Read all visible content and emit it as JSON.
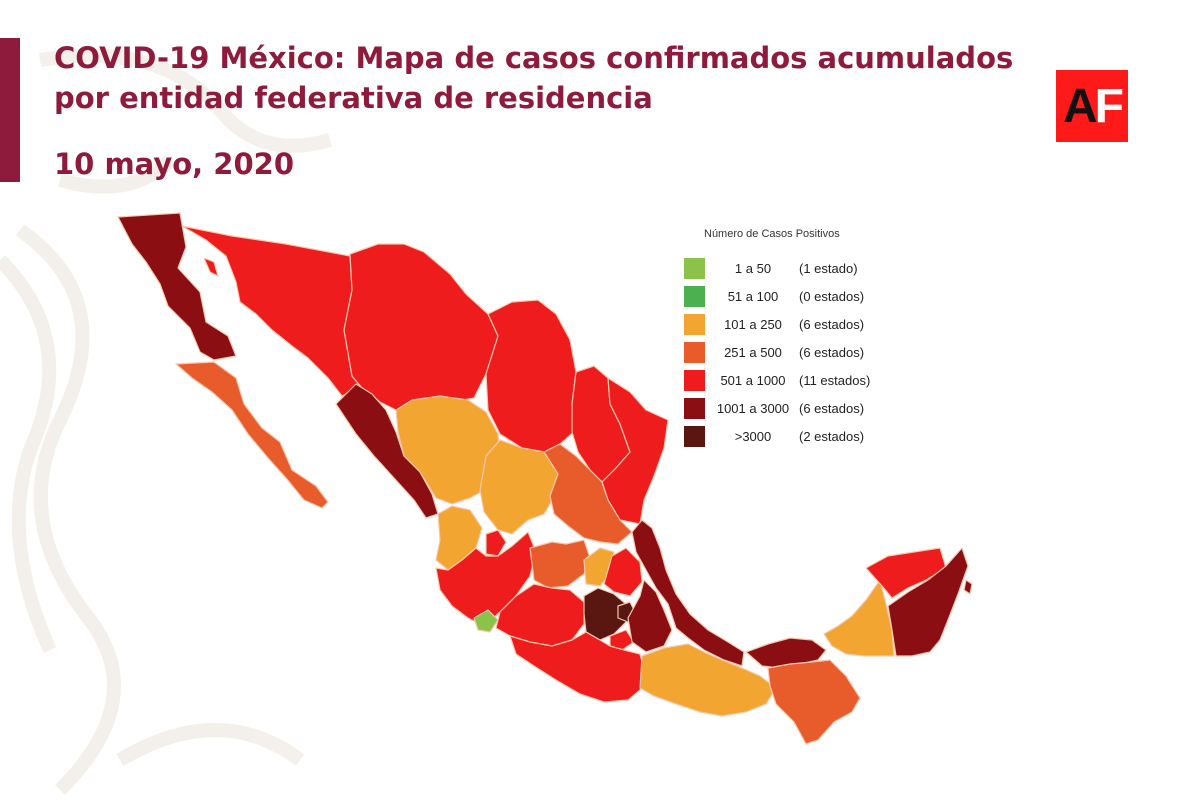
{
  "header": {
    "title_line1": "COVID-19 México: Mapa de casos confirmados acumulados",
    "title_line2": "por entidad federativa de residencia",
    "date": "10 mayo, 2020"
  },
  "logo": {
    "letter_a": "A",
    "letter_f": "F",
    "color": "#ff1a1a"
  },
  "colors": {
    "brand": "#8e1b3c",
    "c1": "#8bc34a",
    "c2": "#4caf50",
    "c3": "#f2a531",
    "c4": "#e85c2c",
    "c5": "#ee1c1c",
    "c6": "#8b0f12",
    "c7": "#5a1712"
  },
  "legend": {
    "title": "Número de Casos Positivos",
    "items": [
      {
        "range": "1 a 50",
        "count": "(1 estado)",
        "color": "#8bc34a"
      },
      {
        "range": "51 a 100",
        "count": "(0 estados)",
        "color": "#4caf50"
      },
      {
        "range": "101 a 250",
        "count": "(6 estados)",
        "color": "#f2a531"
      },
      {
        "range": "251 a 500",
        "count": "(6 estados)",
        "color": "#e85c2c"
      },
      {
        "range": "501 a 1000",
        "count": "(11 estados)",
        "color": "#ee1c1c"
      },
      {
        "range": "1001 a 3000",
        "count": "(6 estados)",
        "color": "#8b0f12"
      },
      {
        "range": ">3000",
        "count": "(2 estados)",
        "color": "#5a1712"
      }
    ]
  }
}
